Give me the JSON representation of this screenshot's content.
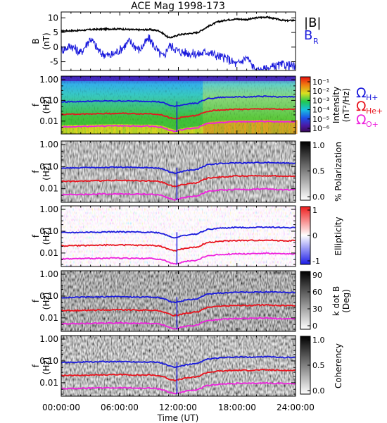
{
  "figure": {
    "title": "ACE Mag 1998-173",
    "x_label": "Time (UT)",
    "x_ticks": [
      "00:00:00",
      "06:00:00",
      "12:00:00",
      "18:00:00",
      "24:00:00"
    ],
    "colors": {
      "B": "#000000",
      "BR": "#1a1adc",
      "omega_H": "#1a1adc",
      "omega_He": "#e8141e",
      "omega_O": "#ee22dd"
    }
  },
  "chart_data": [
    {
      "id": "field",
      "type": "line",
      "ylabel": [
        "B",
        "(nT)"
      ],
      "ylim": [
        -8,
        12
      ],
      "yticks": [
        -5,
        0,
        5,
        10
      ],
      "legend": [
        {
          "text": "|B|",
          "color": "#000000"
        },
        {
          "text": "B",
          "sub": "R",
          "color": "#1a1adc"
        }
      ],
      "x_hours": [
        0,
        1,
        2,
        3,
        4,
        5,
        6,
        7,
        8,
        9,
        10,
        10.5,
        11,
        11.5,
        12,
        13,
        14,
        15,
        16,
        17,
        18,
        19,
        20,
        21,
        22,
        23,
        24
      ],
      "series": [
        {
          "name": "|B|",
          "color": "#000000",
          "values": [
            5.5,
            5.6,
            5.7,
            6.0,
            6.1,
            6.2,
            6.2,
            6.0,
            5.9,
            6.0,
            5.6,
            4.5,
            3.2,
            3.5,
            4.2,
            4.6,
            5.0,
            7.0,
            8.6,
            9.3,
            9.6,
            9.4,
            10.0,
            10.3,
            9.6,
            9.0,
            9.2
          ]
        },
        {
          "name": "B",
          "color": "#1a1adc",
          "values": [
            -1.0,
            0.5,
            -2.0,
            3.0,
            -2.0,
            -3.0,
            -1.0,
            2.0,
            -1.0,
            3.0,
            -2.0,
            -3.5,
            0.5,
            0.0,
            -1.5,
            -2.0,
            -2.5,
            -1.5,
            -3.0,
            -4.0,
            -6.0,
            -3.5,
            -8.5,
            -7.5,
            -6.5,
            -6.0,
            -7.0
          ]
        }
      ]
    },
    {
      "id": "intensity",
      "type": "heatmap",
      "ylabel": [
        "f",
        "(Hz)"
      ],
      "yticks": [
        "1.00",
        "0.10",
        "0.01"
      ],
      "colorbar": {
        "label": [
          "Intensity",
          "(nT²/Hz)"
        ],
        "ticks": [
          "10⁻¹",
          "10⁻²",
          "10⁻³",
          "10⁻⁴",
          "10⁻⁵",
          "10⁻⁶"
        ],
        "scale": "rainbow"
      },
      "right_labels": [
        {
          "text": "Ω",
          "sub": "H+",
          "color": "#1a1adc"
        },
        {
          "text": "Ω",
          "sub": "He+",
          "color": "#e8141e"
        },
        {
          "text": "Ω",
          "sub": "O+",
          "color": "#ee22dd"
        }
      ]
    },
    {
      "id": "polarization",
      "type": "heatmap",
      "ylabel": [
        "f",
        "(Hz)"
      ],
      "yticks": [
        "1.00",
        "0.10",
        "0.01"
      ],
      "colorbar": {
        "label": [
          "% Polarization"
        ],
        "ticks": [
          "1.0",
          "0.5",
          "0.0"
        ],
        "scale": "gray"
      }
    },
    {
      "id": "ellipticity",
      "type": "heatmap",
      "ylabel": [
        "f",
        "(Hz)"
      ],
      "yticks": [
        "1.00",
        "0.10",
        "0.01"
      ],
      "colorbar": {
        "label": [
          "Ellipticity"
        ],
        "ticks": [
          "1",
          "0",
          "-1"
        ],
        "scale": "bwr"
      }
    },
    {
      "id": "kdotb",
      "type": "heatmap",
      "ylabel": [
        "f",
        "(Hz)"
      ],
      "yticks": [
        "1.00",
        "0.10",
        "0.01"
      ],
      "colorbar": {
        "label": [
          "k dot B",
          "(Deg)"
        ],
        "ticks": [
          "90",
          "60",
          "30",
          "0"
        ],
        "scale": "gray"
      }
    },
    {
      "id": "coherency",
      "type": "heatmap",
      "ylabel": [
        "f",
        "(Hz)"
      ],
      "yticks": [
        "1.00",
        "0.10",
        "0.01"
      ],
      "colorbar": {
        "label": [
          "Coherency"
        ],
        "ticks": [
          "1.0",
          "0.5",
          "0.0"
        ],
        "scale": "gray"
      }
    }
  ],
  "gyrofrequency_curves": {
    "x_hours": [
      0,
      2,
      4,
      6,
      8,
      9,
      10,
      10.5,
      11,
      11.3,
      11.6,
      12,
      12.5,
      13,
      14,
      14.5,
      15,
      16,
      17,
      18,
      19,
      20,
      21,
      22,
      23,
      24
    ],
    "omega_H_hz": [
      0.085,
      0.088,
      0.092,
      0.094,
      0.09,
      0.091,
      0.085,
      0.075,
      0.06,
      0.055,
      0.05,
      0.055,
      0.062,
      0.068,
      0.075,
      0.1,
      0.12,
      0.135,
      0.142,
      0.15,
      0.148,
      0.152,
      0.156,
      0.15,
      0.145,
      0.148
    ]
  }
}
